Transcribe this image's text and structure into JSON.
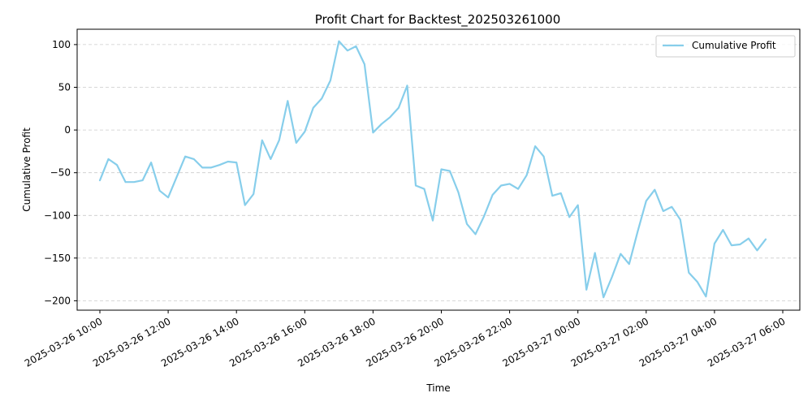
{
  "chart_data": {
    "type": "line",
    "title": "Profit Chart for Backtest_202503261000",
    "xlabel": "Time",
    "ylabel": "Cumulative Profit",
    "legend_position": "top-right",
    "grid": "horizontal-dashed",
    "x_axis": {
      "range": [
        "2025-03-26 09:20",
        "2025-03-27 06:30"
      ],
      "ticks": [
        {
          "value": "2025-03-26 10:00",
          "label": "2025-03-26 10:00"
        },
        {
          "value": "2025-03-26 12:00",
          "label": "2025-03-26 12:00"
        },
        {
          "value": "2025-03-26 14:00",
          "label": "2025-03-26 14:00"
        },
        {
          "value": "2025-03-26 16:00",
          "label": "2025-03-26 16:00"
        },
        {
          "value": "2025-03-26 18:00",
          "label": "2025-03-26 18:00"
        },
        {
          "value": "2025-03-26 20:00",
          "label": "2025-03-26 20:00"
        },
        {
          "value": "2025-03-26 22:00",
          "label": "2025-03-26 22:00"
        },
        {
          "value": "2025-03-27 00:00",
          "label": "2025-03-27 00:00"
        },
        {
          "value": "2025-03-27 02:00",
          "label": "2025-03-27 02:00"
        },
        {
          "value": "2025-03-27 04:00",
          "label": "2025-03-27 04:00"
        },
        {
          "value": "2025-03-27 06:00",
          "label": "2025-03-27 06:00"
        }
      ]
    },
    "y_axis": {
      "range": [
        -211,
        118
      ],
      "ticks": [
        {
          "value": 100,
          "label": "100"
        },
        {
          "value": 50,
          "label": "50"
        },
        {
          "value": 0,
          "label": "0"
        },
        {
          "value": -50,
          "label": "−50"
        },
        {
          "value": -100,
          "label": "−100"
        },
        {
          "value": -150,
          "label": "−150"
        },
        {
          "value": -200,
          "label": "−200"
        }
      ]
    },
    "series": [
      {
        "name": "Cumulative Profit",
        "color": "#87ceeb",
        "points": [
          [
            "2025-03-26 10:00",
            -59
          ],
          [
            "2025-03-26 10:15",
            -34
          ],
          [
            "2025-03-26 10:30",
            -41
          ],
          [
            "2025-03-26 10:45",
            -61
          ],
          [
            "2025-03-26 11:00",
            -61
          ],
          [
            "2025-03-26 11:15",
            -59
          ],
          [
            "2025-03-26 11:30",
            -38
          ],
          [
            "2025-03-26 11:45",
            -71
          ],
          [
            "2025-03-26 12:00",
            -79
          ],
          [
            "2025-03-26 12:15",
            -55
          ],
          [
            "2025-03-26 12:30",
            -31
          ],
          [
            "2025-03-26 12:45",
            -34
          ],
          [
            "2025-03-26 13:00",
            -44
          ],
          [
            "2025-03-26 13:15",
            -44
          ],
          [
            "2025-03-26 13:30",
            -41
          ],
          [
            "2025-03-26 13:45",
            -37
          ],
          [
            "2025-03-26 14:00",
            -38
          ],
          [
            "2025-03-26 14:15",
            -88
          ],
          [
            "2025-03-26 14:30",
            -75
          ],
          [
            "2025-03-26 14:45",
            -12
          ],
          [
            "2025-03-26 15:00",
            -34
          ],
          [
            "2025-03-26 15:15",
            -12
          ],
          [
            "2025-03-26 15:30",
            34
          ],
          [
            "2025-03-26 15:45",
            -15
          ],
          [
            "2025-03-26 16:00",
            -2
          ],
          [
            "2025-03-26 16:15",
            26
          ],
          [
            "2025-03-26 16:30",
            37
          ],
          [
            "2025-03-26 16:45",
            58
          ],
          [
            "2025-03-26 17:00",
            104
          ],
          [
            "2025-03-26 17:15",
            93
          ],
          [
            "2025-03-26 17:30",
            98
          ],
          [
            "2025-03-26 17:45",
            77
          ],
          [
            "2025-03-26 18:00",
            -3
          ],
          [
            "2025-03-26 18:15",
            7
          ],
          [
            "2025-03-26 18:30",
            15
          ],
          [
            "2025-03-26 18:45",
            26
          ],
          [
            "2025-03-26 19:00",
            52
          ],
          [
            "2025-03-26 19:15",
            -65
          ],
          [
            "2025-03-26 19:30",
            -69
          ],
          [
            "2025-03-26 19:45",
            -106
          ],
          [
            "2025-03-26 20:00",
            -46
          ],
          [
            "2025-03-26 20:15",
            -48
          ],
          [
            "2025-03-26 20:30",
            -73
          ],
          [
            "2025-03-26 20:45",
            -110
          ],
          [
            "2025-03-26 21:00",
            -122
          ],
          [
            "2025-03-26 21:15",
            -101
          ],
          [
            "2025-03-26 21:30",
            -76
          ],
          [
            "2025-03-26 21:45",
            -65
          ],
          [
            "2025-03-26 22:00",
            -63
          ],
          [
            "2025-03-26 22:15",
            -69
          ],
          [
            "2025-03-26 22:30",
            -53
          ],
          [
            "2025-03-26 22:45",
            -19
          ],
          [
            "2025-03-26 23:00",
            -31
          ],
          [
            "2025-03-26 23:15",
            -77
          ],
          [
            "2025-03-26 23:30",
            -74
          ],
          [
            "2025-03-26 23:45",
            -102
          ],
          [
            "2025-03-27 00:00",
            -88
          ],
          [
            "2025-03-27 00:15",
            -187
          ],
          [
            "2025-03-27 00:30",
            -144
          ],
          [
            "2025-03-27 00:45",
            -196
          ],
          [
            "2025-03-27 01:00",
            -172
          ],
          [
            "2025-03-27 01:15",
            -145
          ],
          [
            "2025-03-27 01:30",
            -157
          ],
          [
            "2025-03-27 01:45",
            -119
          ],
          [
            "2025-03-27 02:00",
            -83
          ],
          [
            "2025-03-27 02:15",
            -70
          ],
          [
            "2025-03-27 02:30",
            -95
          ],
          [
            "2025-03-27 02:45",
            -90
          ],
          [
            "2025-03-27 03:00",
            -105
          ],
          [
            "2025-03-27 03:15",
            -167
          ],
          [
            "2025-03-27 03:30",
            -178
          ],
          [
            "2025-03-27 03:45",
            -195
          ],
          [
            "2025-03-27 04:00",
            -133
          ],
          [
            "2025-03-27 04:15",
            -117
          ],
          [
            "2025-03-27 04:30",
            -135
          ],
          [
            "2025-03-27 04:45",
            -134
          ],
          [
            "2025-03-27 05:00",
            -127
          ],
          [
            "2025-03-27 05:15",
            -141
          ],
          [
            "2025-03-27 05:30",
            -128
          ]
        ]
      }
    ]
  }
}
